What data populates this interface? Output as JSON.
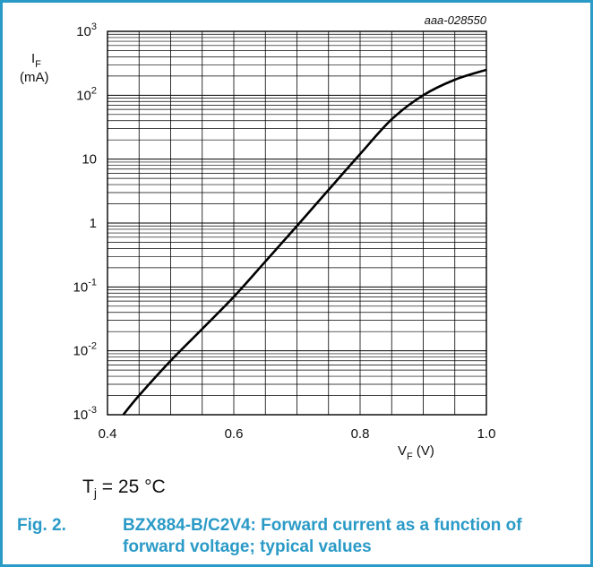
{
  "chart_data": {
    "type": "line",
    "chart_id": "aaa-028550",
    "y_label_main": "I",
    "y_label_sub": "F",
    "y_unit": "(mA)",
    "x_label_main": "V",
    "x_label_sub": "F",
    "x_unit": " (V)",
    "x_scale": "linear",
    "y_scale": "log",
    "xlim": [
      0.4,
      1.0
    ],
    "ylim": [
      0.001,
      1000
    ],
    "grid": true,
    "x_ticks": [
      "0.4",
      "0.6",
      "0.8",
      "1.0"
    ],
    "x_tick_values": [
      0.4,
      0.6,
      0.8,
      1.0
    ],
    "y_ticks": [
      {
        "base": "10",
        "exp": "-3",
        "value": 0.001
      },
      {
        "base": "10",
        "exp": "-2",
        "value": 0.01
      },
      {
        "base": "10",
        "exp": "-1",
        "value": 0.1
      },
      {
        "base": "1",
        "exp": "",
        "value": 1
      },
      {
        "base": "10",
        "exp": "",
        "value": 10
      },
      {
        "base": "10",
        "exp": "2",
        "value": 100
      },
      {
        "base": "10",
        "exp": "3",
        "value": 1000
      }
    ],
    "series": [
      {
        "x": [
          0.425,
          0.45,
          0.5,
          0.55,
          0.6,
          0.65,
          0.7,
          0.75,
          0.8,
          0.85,
          0.9,
          0.95,
          1.0
        ],
        "y": [
          0.001,
          0.002,
          0.007,
          0.022,
          0.07,
          0.25,
          0.9,
          3.3,
          12,
          42,
          100,
          175,
          250
        ]
      }
    ]
  },
  "note": {
    "prefix": "T",
    "sub": "j",
    "suffix": " = 25 °C"
  },
  "caption": {
    "number": "Fig. 2.",
    "text": "BZX884-B/C2V4: Forward current as a function of forward voltage; typical values"
  }
}
